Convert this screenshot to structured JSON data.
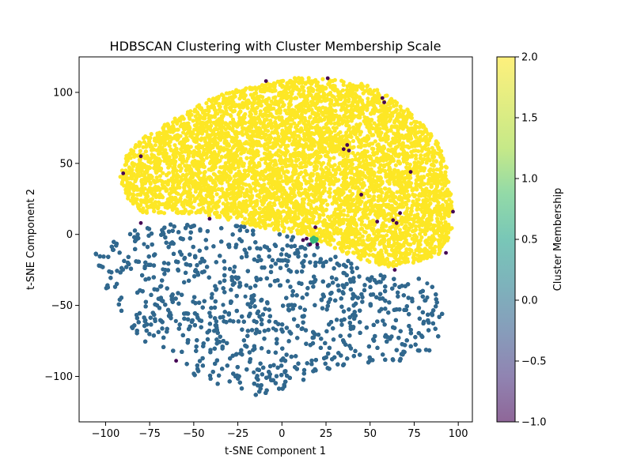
{
  "chart_data": {
    "type": "scatter",
    "title": "HDBSCAN Clustering with Cluster Membership Scale",
    "xlabel": "t-SNE Component 1",
    "ylabel": "t-SNE Component 2",
    "xlim": [
      -115,
      108
    ],
    "ylim": [
      -132,
      125
    ],
    "xticks": [
      -100,
      -75,
      -50,
      -25,
      0,
      25,
      50,
      75,
      100
    ],
    "yticks": [
      -100,
      -50,
      0,
      50,
      100
    ],
    "grid": false,
    "colormap": "viridis",
    "colorbar": {
      "label": "Cluster Membership",
      "range": [
        -1.0,
        2.0
      ],
      "ticks": [
        "-1.0",
        "-0.5",
        "0.0",
        "0.5",
        "1.0",
        "1.5",
        "2.0"
      ],
      "alpha": 0.6
    },
    "clusters": [
      {
        "label_value": 2,
        "color": "#fde725",
        "region": "upper",
        "outline": [
          [
            -92,
            40
          ],
          [
            -88,
            56
          ],
          [
            -80,
            68
          ],
          [
            -68,
            77
          ],
          [
            -52,
            88
          ],
          [
            -40,
            96
          ],
          [
            -25,
            102
          ],
          [
            -10,
            106
          ],
          [
            5,
            110
          ],
          [
            15,
            111
          ],
          [
            30,
            109
          ],
          [
            45,
            106
          ],
          [
            55,
            103
          ],
          [
            62,
            96
          ],
          [
            70,
            90
          ],
          [
            77,
            80
          ],
          [
            83,
            74
          ],
          [
            89,
            64
          ],
          [
            93,
            50
          ],
          [
            95,
            35
          ],
          [
            97,
            20
          ],
          [
            97,
            5
          ],
          [
            91,
            -13
          ],
          [
            75,
            -20
          ],
          [
            60,
            -23
          ],
          [
            45,
            -18
          ],
          [
            30,
            -10
          ],
          [
            15,
            -1
          ],
          [
            0,
            2
          ],
          [
            -20,
            7
          ],
          [
            -40,
            13
          ],
          [
            -55,
            15
          ],
          [
            -70,
            15
          ],
          [
            -80,
            15
          ],
          [
            -87,
            23
          ]
        ],
        "approx_points": 6000
      },
      {
        "label_value": 0,
        "color": "#31688e",
        "region": "lower",
        "outline": [
          [
            -106,
            -11
          ],
          [
            -95,
            -5
          ],
          [
            -82,
            4
          ],
          [
            -70,
            7
          ],
          [
            -55,
            8
          ],
          [
            -40,
            8
          ],
          [
            -25,
            6
          ],
          [
            -10,
            3
          ],
          [
            5,
            -1
          ],
          [
            15,
            -5
          ],
          [
            25,
            -12
          ],
          [
            38,
            -18
          ],
          [
            52,
            -24
          ],
          [
            62,
            -30
          ],
          [
            70,
            -33
          ],
          [
            80,
            -30
          ],
          [
            88,
            -40
          ],
          [
            91,
            -55
          ],
          [
            90,
            -72
          ],
          [
            84,
            -82
          ],
          [
            75,
            -88
          ],
          [
            62,
            -92
          ],
          [
            45,
            -90
          ],
          [
            30,
            -95
          ],
          [
            18,
            -100
          ],
          [
            5,
            -107
          ],
          [
            -10,
            -115
          ],
          [
            -22,
            -112
          ],
          [
            -35,
            -106
          ],
          [
            -48,
            -100
          ],
          [
            -60,
            -92
          ],
          [
            -72,
            -82
          ],
          [
            -83,
            -70
          ],
          [
            -92,
            -55
          ],
          [
            -99,
            -40
          ],
          [
            -104,
            -25
          ]
        ],
        "holes": [
          [
            -48,
            -37,
            7
          ],
          [
            -5,
            -43,
            6
          ],
          [
            8,
            -30,
            4
          ],
          [
            48,
            -58,
            6
          ],
          [
            45,
            -75,
            6
          ],
          [
            20,
            -60,
            5
          ],
          [
            -28,
            -70,
            5
          ],
          [
            -62,
            -33,
            5
          ],
          [
            82,
            -25,
            5
          ]
        ],
        "approx_points": 6000
      },
      {
        "label_value": 1,
        "color": "#35b779",
        "region": "small",
        "points": [
          [
            18,
            -3
          ],
          [
            18.5,
            -4
          ],
          [
            17,
            -3.5
          ],
          [
            19,
            -4.5
          ],
          [
            17.5,
            -5
          ],
          [
            18,
            -2.5
          ],
          [
            19.5,
            -3.5
          ]
        ]
      },
      {
        "label_value": -1,
        "color": "#440154",
        "region": "noise",
        "points": [
          [
            -9,
            108
          ],
          [
            -80,
            55
          ],
          [
            -90,
            43
          ],
          [
            -41,
            11
          ],
          [
            57,
            96
          ],
          [
            58,
            93
          ],
          [
            35,
            60
          ],
          [
            38,
            59
          ],
          [
            37,
            63
          ],
          [
            45,
            28
          ],
          [
            73,
            44
          ],
          [
            54,
            9
          ],
          [
            63,
            10
          ],
          [
            65,
            8
          ],
          [
            67,
            15
          ],
          [
            97,
            16
          ],
          [
            93,
            -13
          ],
          [
            64,
            -25
          ],
          [
            14,
            -3
          ],
          [
            12,
            -4
          ],
          [
            16,
            -7
          ],
          [
            20,
            -7
          ],
          [
            19,
            5
          ],
          [
            -80,
            8
          ],
          [
            -60,
            -89
          ],
          [
            26,
            110
          ]
        ]
      }
    ]
  }
}
